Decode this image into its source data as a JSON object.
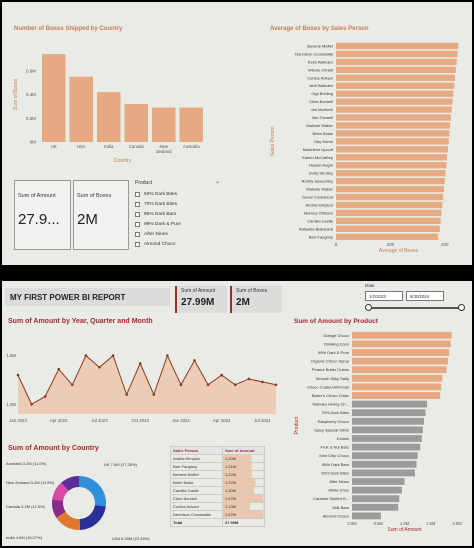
{
  "top": {
    "boxes_by_country": {
      "title": "Number of Boxes Shipped by Country",
      "ylabel": "Sum of Boxes",
      "xlabel": "Country"
    },
    "boxes_by_sales_person": {
      "title": "Average of Boxes by Sales Person",
      "ylabel": "Sales Person",
      "xlabel": "Average of Boxes"
    },
    "card_amount": {
      "label": "Sum of Amount",
      "value": "27.9..."
    },
    "card_boxes": {
      "label": "Sum of Boxes",
      "value": "2M"
    },
    "slicer": {
      "title": "Product",
      "items": [
        "50% Dark Bites",
        "70% Dark Bites",
        "85% Dark Bars",
        "99% Dark & Pure",
        "After Nines",
        "Almond Choco"
      ]
    }
  },
  "bottom": {
    "report_title": "MY FIRST POWER BI REPORT",
    "kpi_amount": {
      "label": "Sum of Amount",
      "value": "27.99M"
    },
    "kpi_boxes": {
      "label": "Sum of Boxes",
      "value": "2M"
    },
    "date": {
      "label": "Date",
      "from": "1/2/2023",
      "to": "8/30/2024"
    },
    "line_title": "Sum of Amount by Year, Quarter and Month",
    "donut": {
      "title": "Sum of Amount by Country",
      "labels": [
        "UK 7.6M (27.26%)",
        "USA 6.28M (22.45%)",
        "India 4.6M (16.27%)",
        "Canada 3.2M (11.5%)",
        "New Zealand 3.2M (11.5%)",
        "Australia 3.2M (11.0%)"
      ]
    },
    "table": {
      "headers": [
        "Sales Person",
        "Sum of Amount"
      ],
      "rows": [
        [
          "Andria Kimpton",
          "1.20M"
        ],
        [
          "Barr Faughny",
          "1.21M"
        ],
        [
          "Beverie Moffet",
          "1.22M"
        ],
        [
          "Brien Boise",
          "1.37M"
        ],
        [
          "Camilla Castle",
          "1.30M"
        ],
        [
          "Ches Bonnell",
          "1.67M"
        ],
        [
          "Curtice Advani",
          "1.13M"
        ],
        [
          "Dennison Crosswaite",
          "1.67M"
        ]
      ],
      "total_label": "Total",
      "total_value": "27.99M"
    },
    "product_title": "Sum of Amount by Product",
    "product_ylabel": "Product",
    "product_xlabel": "Sum of Amount"
  },
  "chart_data": [
    {
      "type": "bar",
      "title": "Number of Boxes Shipped by Country",
      "categories": [
        "UK",
        "USA",
        "India",
        "Canada",
        "New Zealand",
        "Australia"
      ],
      "values": [
        0.74,
        0.55,
        0.42,
        0.32,
        0.29,
        0.29
      ],
      "xlabel": "Country",
      "ylabel": "Sum of Boxes",
      "yticks": [
        "0M",
        "0.2M",
        "0.4M",
        "0.6M"
      ],
      "ylim": [
        0,
        0.8
      ],
      "color": "#e6a981"
    },
    {
      "type": "bar",
      "orientation": "horizontal",
      "title": "Average of Boxes by Sales Person",
      "categories": [
        "Beverie Moffet",
        "Dennison Crosswaite",
        "Kelci Walkden",
        "Wilone O'Kielt",
        "Curtice Advani",
        "Ardi Walkden",
        "Gigi Bohling",
        "Ches Bonnell",
        "Jan Morforth",
        "Van Tuxwell",
        "Mallorie Waber",
        "Brien Boise",
        "Oby Sorrel",
        "Madelene Upcott",
        "Karlen McCaffrey",
        "Husein Augar",
        "Dotty Strutley",
        "Roddy Speechley",
        "Mallorie Waber",
        "Gunar Cockshoot",
        "Andria Kimpton",
        "Marney O'Breen",
        "Camilla Castle",
        "Rafaelita Blaksland",
        "Barr Faughny"
      ],
      "values": [
        450,
        447,
        444,
        441,
        438,
        435,
        432,
        429,
        426,
        423,
        420,
        418,
        415,
        412,
        409,
        406,
        403,
        400,
        397,
        394,
        391,
        388,
        385,
        382,
        376
      ],
      "xlabel": "Average of Boxes",
      "xticks": [
        "0",
        "200",
        "400"
      ],
      "xlim": [
        0,
        460
      ],
      "color": "#e6a981"
    },
    {
      "type": "area",
      "title": "Sum of Amount by Year, Quarter and Month",
      "x": [
        "Jan 2023",
        "Feb 2023",
        "Mar 2023",
        "Apr 2023",
        "May 2023",
        "Jun 2023",
        "Jul 2023",
        "Aug 2023",
        "Sep 2023",
        "Oct 2023",
        "Nov 2023",
        "Dec 2023",
        "Jan 2024",
        "Feb 2024",
        "Mar 2024",
        "Apr 2024",
        "May 2024",
        "Jun 2024",
        "Jul 2024",
        "Aug 2024"
      ],
      "values": [
        1.3,
        1.0,
        1.08,
        1.36,
        1.2,
        1.5,
        1.38,
        1.5,
        1.1,
        1.42,
        1.1,
        1.5,
        1.2,
        1.45,
        1.2,
        1.3,
        1.2,
        1.26,
        1.23,
        1.2
      ],
      "xticks": [
        "Jan 2023",
        "Apr 2023",
        "Jul 2023",
        "Oct 2023",
        "Jan 2024",
        "Apr 2024",
        "Jul 2024"
      ],
      "yticks": [
        "1.0M",
        "1.5M"
      ],
      "ylim": [
        0.9,
        1.65
      ],
      "color": "#8b3a1e"
    },
    {
      "type": "pie",
      "title": "Sum of Amount by Country",
      "categories": [
        "UK",
        "USA",
        "India",
        "Canada",
        "New Zealand",
        "Australia"
      ],
      "values": [
        7.6,
        6.28,
        4.6,
        3.2,
        3.2,
        3.2
      ],
      "colors": [
        "#2f8fd8",
        "#2b2f9a",
        "#e07a2f",
        "#8a2b8a",
        "#d84aa6",
        "#5b2d9a"
      ]
    },
    {
      "type": "bar",
      "orientation": "horizontal",
      "title": "Sum of Amount by Product",
      "categories": [
        "Orange Choco",
        "Drinking Coco",
        "99% Dark & Pure",
        "Organic Choco Syrup",
        "Peanut Butter Cubes",
        "Smooth Silky Salty",
        "Choco Coated Almonds",
        "Baker's Choco Chips",
        "Manuka Honey Ch...",
        "70% Dark Bites",
        "Raspberry Choco",
        "Spicy Special Slims",
        "Eclairs",
        "Fruit & Nut Bars",
        "Mint Chip Choco",
        "85% Dark Bars",
        "50% Dark Bites",
        "After Nines",
        "White Choc",
        "Caramel Stuffed B...",
        "Milk Bars",
        "Almond Choco"
      ],
      "values": [
        1.9,
        1.88,
        1.85,
        1.83,
        1.8,
        1.72,
        1.7,
        1.68,
        1.43,
        1.4,
        1.37,
        1.35,
        1.33,
        1.3,
        1.25,
        1.23,
        1.2,
        1.0,
        0.95,
        0.9,
        0.88,
        0.55
      ],
      "highlighted": 8,
      "xlabel": "Sum of Amount",
      "xticks": [
        "0.0M",
        "0.5M",
        "1.0M",
        "1.5M",
        "2.0M"
      ],
      "xlim": [
        0,
        2.0
      ],
      "colors": [
        "#e6a981",
        "#9b9b9b"
      ]
    }
  ]
}
